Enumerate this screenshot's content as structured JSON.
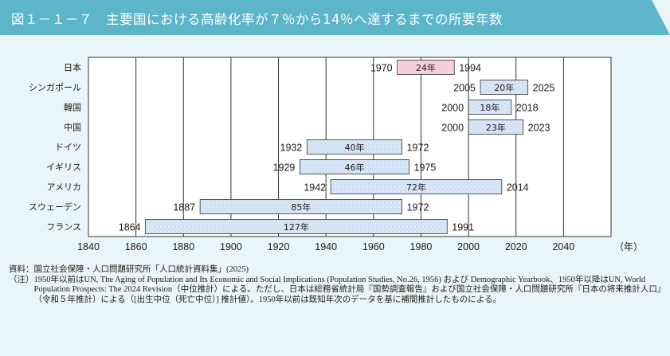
{
  "title": "図１－１－７　主要国における高齢化率が７％から14％へ達するまでの所要年数",
  "colors": {
    "title_bg": "#5db5c9",
    "panel_bg": "#e9f5f8",
    "bar_japan": "#f6cfdc",
    "bar_other": "#cfe0f2",
    "bar_border": "#333333",
    "grid": "#333333"
  },
  "chart_data": {
    "type": "bar",
    "orientation": "horizontal",
    "title": "主要国における高齢化率が７％から14％へ達するまでの所要年数",
    "x_unit_label": "（年）",
    "xlim": [
      1840,
      2060
    ],
    "x_ticks": [
      1840,
      1860,
      1880,
      1900,
      1920,
      1940,
      1960,
      1980,
      2000,
      2020,
      2040
    ],
    "x_tick_labels": [
      "1840",
      "1860",
      "1880",
      "1900",
      "1920",
      "1940",
      "1960",
      "1980",
      "2000",
      "2020",
      "2040"
    ],
    "grid": "vertical",
    "rows": [
      {
        "country": "日本",
        "start": 1970,
        "end": 1994,
        "start_label": "1970",
        "end_label": "1994",
        "duration_label": "24年",
        "highlight": true
      },
      {
        "country": "シンガポール",
        "start": 2005,
        "end": 2025,
        "start_label": "2005",
        "end_label": "2025",
        "duration_label": "20年",
        "highlight": false
      },
      {
        "country": "韓国",
        "start": 2000,
        "end": 2018,
        "start_label": "2000",
        "end_label": "2018",
        "duration_label": "18年",
        "highlight": false
      },
      {
        "country": "中国",
        "start": 2000,
        "end": 2023,
        "start_label": "2000",
        "end_label": "2023",
        "duration_label": "23年",
        "highlight": false
      },
      {
        "country": "ドイツ",
        "start": 1932,
        "end": 1972,
        "start_label": "1932",
        "end_label": "1972",
        "duration_label": "40年",
        "highlight": false
      },
      {
        "country": "イギリス",
        "start": 1929,
        "end": 1975,
        "start_label": "1929",
        "end_label": "1975",
        "duration_label": "46年",
        "highlight": false
      },
      {
        "country": "アメリカ",
        "start": 1942,
        "end": 2014,
        "start_label": "1942",
        "end_label": "2014",
        "duration_label": "72年",
        "highlight": false
      },
      {
        "country": "スウェーデン",
        "start": 1887,
        "end": 1972,
        "start_label": "1887",
        "end_label": "1972",
        "duration_label": "85年",
        "highlight": false
      },
      {
        "country": "フランス",
        "start": 1864,
        "end": 1991,
        "start_label": "1864",
        "end_label": "1991",
        "duration_label": "127年",
        "highlight": false
      }
    ]
  },
  "notes": {
    "source": "資料：国立社会保障・人口問題研究所「人口統計資料集」(2025)",
    "note_head": "（注）",
    "note_body": "1950年以前はUN, The Aging of Population and Its Economic and Social Implications (Population Studies, No.26, 1956) および Demographic Yearbook、1950年以降はUN, World Population Prospects: The 2024 Revision（中位推計）による。ただし、日本は総務省統計局『国勢調査報告』および国立社会保障・人口問題研究所『日本の将来推計人口』（令和５年推計）による（[出生中位（死亡中位）] 推計値）。1950年以前は既知年次のデータを基に補間推計したものによる。"
  }
}
